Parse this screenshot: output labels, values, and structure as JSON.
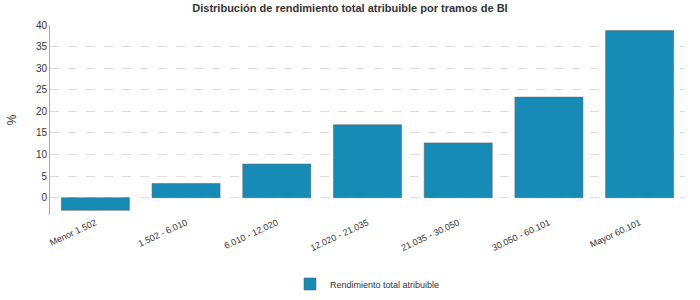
{
  "chart_data": {
    "type": "bar",
    "title": "Distribución de rendimiento total atribuible por tramos de BI",
    "y_label": "%",
    "categories": [
      "Menor 1.502",
      "1.502 - 6.010",
      "6.010 - 12.020",
      "12.020 - 21.035",
      "21.035 - 30.050",
      "30.050 - 60.101",
      "Mayor 60.101"
    ],
    "series": [
      {
        "name": "Rendimiento total atribuible",
        "color": "#168bb5",
        "values": [
          -2.9,
          3.3,
          7.8,
          16.9,
          12.7,
          23.3,
          38.7
        ]
      }
    ],
    "ylim": [
      -4,
      40
    ],
    "yticks": [
      0,
      5,
      10,
      15,
      20,
      25,
      30,
      35,
      40
    ],
    "grid": true,
    "legend": "bottom"
  }
}
